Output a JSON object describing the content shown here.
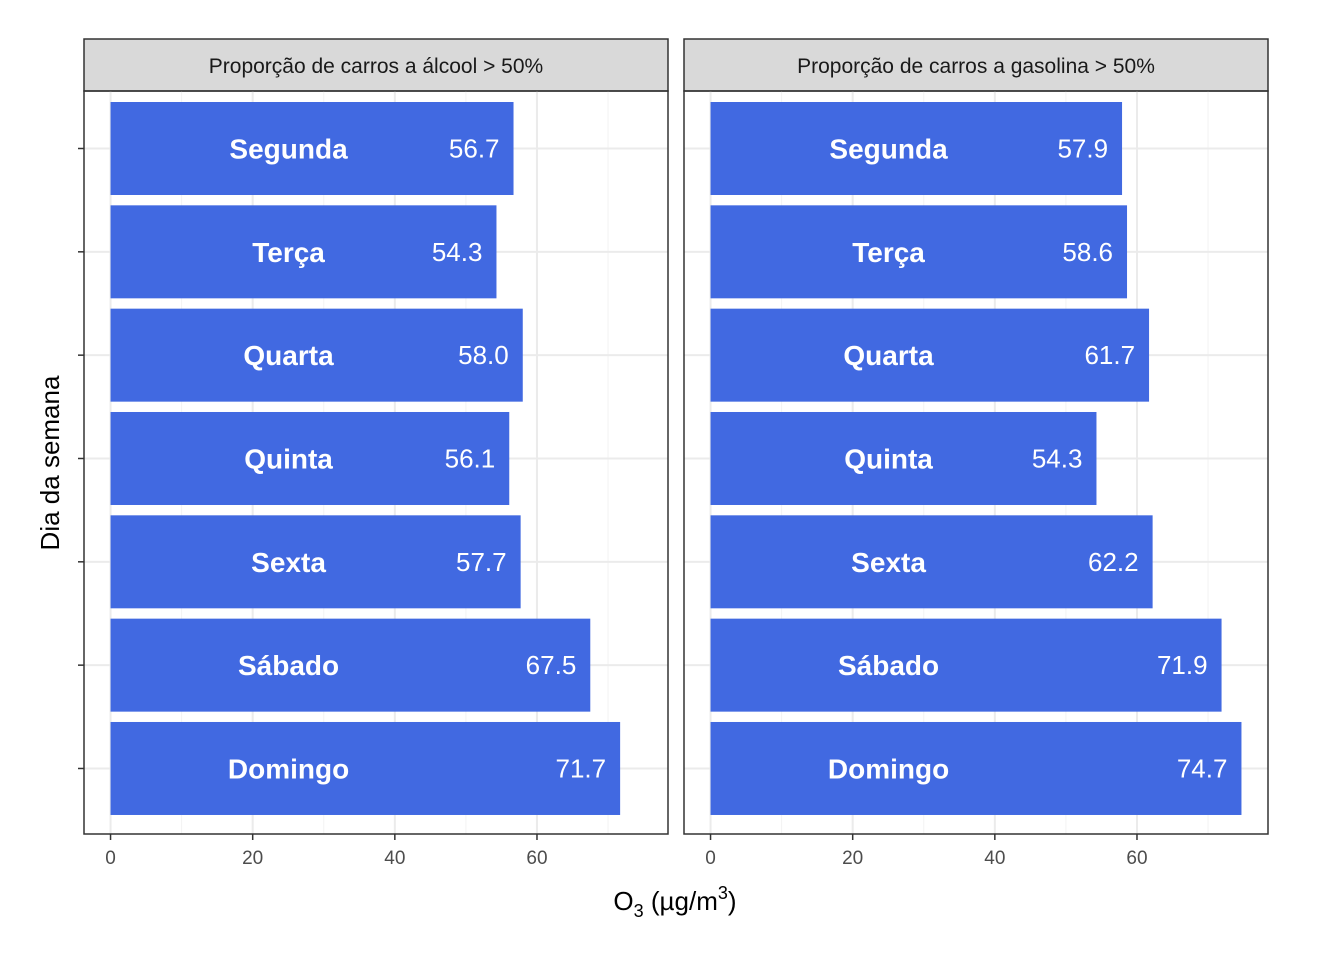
{
  "chart_data": {
    "type": "bar",
    "orientation": "horizontal",
    "facets": [
      {
        "strip": "Proporção de carros a álcool > 50%"
      },
      {
        "strip": "Proporção de carros a gasolina > 50%"
      }
    ],
    "categories": [
      "Segunda",
      "Terça",
      "Quarta",
      "Quinta",
      "Sexta",
      "Sábado",
      "Domingo"
    ],
    "series": [
      {
        "values": [
          56.7,
          54.3,
          58.0,
          56.1,
          57.7,
          67.5,
          71.7
        ]
      },
      {
        "values": [
          57.9,
          58.6,
          61.7,
          54.3,
          62.2,
          71.9,
          74.7
        ]
      }
    ],
    "value_labels": [
      [
        "56.7",
        "54.3",
        "58.0",
        "56.1",
        "57.7",
        "67.5",
        "71.7"
      ],
      [
        "57.9",
        "58.6",
        "61.7",
        "54.3",
        "62.2",
        "71.9",
        "74.7"
      ]
    ],
    "xlabel": {
      "base": "O",
      "sub": "3",
      "mid": " (µg/m",
      "sup": "3",
      "end": ")"
    },
    "ylabel": "Dia da semana",
    "xticks": [
      0,
      20,
      40,
      60
    ],
    "xlim": [
      -3.735,
      78.435
    ],
    "bar_color": "#4169E1",
    "grid": true
  }
}
